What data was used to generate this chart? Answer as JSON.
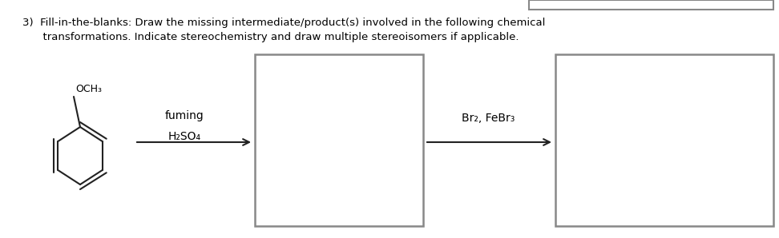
{
  "title_line1": "3)  Fill-in-the-blanks: Draw the missing intermediate/product(s) involved in the following chemical",
  "title_line2": "      transformations. Indicate stereochemistry and draw multiple stereoisomers if applicable.",
  "reagent1_line1": "fuming",
  "reagent1_line2": "H₂SO₄",
  "reagent2": "Br₂, FeBr₃",
  "och3_label": "OCH₃",
  "background": "#ffffff",
  "text_color": "#000000",
  "box_edge_color": "#888888",
  "bond_color": "#222222",
  "arrow_color": "#222222",
  "font_size_title": 9.5,
  "font_size_reagent": 10,
  "font_size_och3": 9,
  "font_size_h2so4": 10
}
